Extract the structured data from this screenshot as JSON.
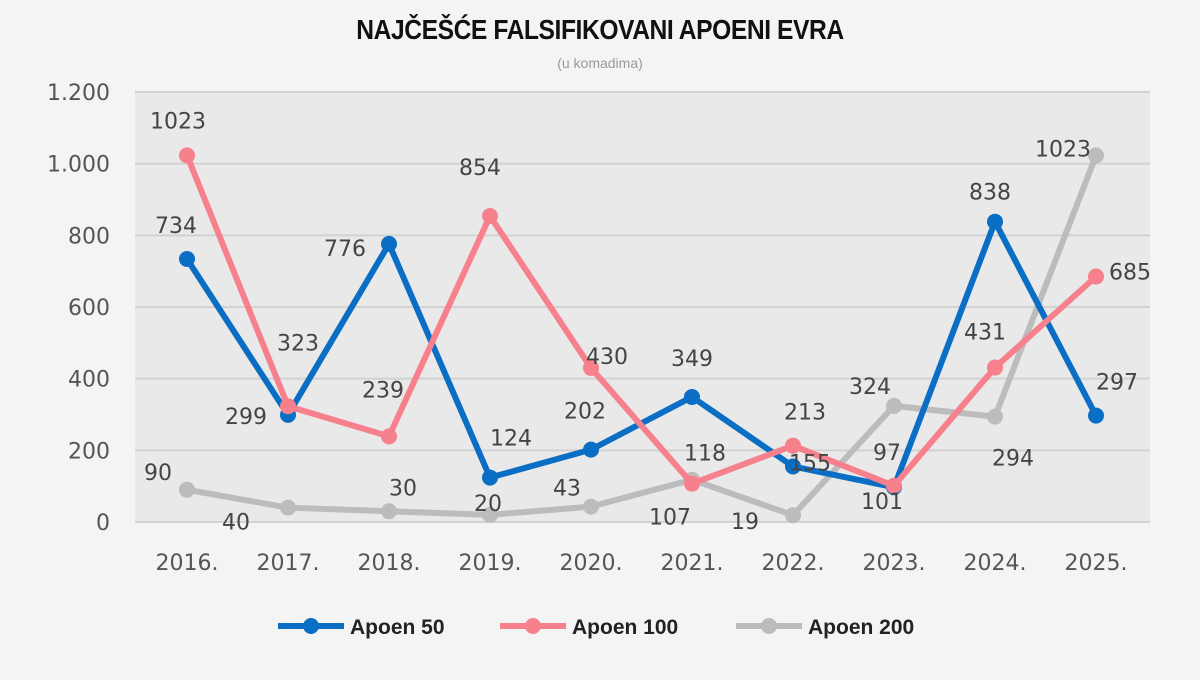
{
  "chart_data": {
    "type": "line",
    "title": "NAJČEŠĆE FALSIFIKOVANI APOENI EVRA",
    "subtitle": "(u komadima)",
    "xlabel": "",
    "ylabel": "",
    "categories": [
      "2016.",
      "2017.",
      "2018.",
      "2019.",
      "2020.",
      "2021.",
      "2022.",
      "2023.",
      "2024.",
      "2025."
    ],
    "ylim": [
      0,
      1200
    ],
    "yticks": [
      0,
      200,
      400,
      600,
      800,
      1000,
      1200
    ],
    "ytick_labels": [
      "0",
      "200",
      "400",
      "600",
      "800",
      "1.000",
      "1.200"
    ],
    "grid": true,
    "legend": "bottom",
    "series": [
      {
        "name": "Apoen 50",
        "color": "#0a6ec4",
        "values": [
          734,
          299,
          776,
          124,
          202,
          349,
          155,
          97,
          838,
          297
        ]
      },
      {
        "name": "Apoen 100",
        "color": "#f7808d",
        "values": [
          1023,
          323,
          239,
          854,
          430,
          107,
          213,
          101,
          431,
          685
        ]
      },
      {
        "name": "Apoen 200",
        "color": "#bcbcbc",
        "values": [
          90,
          40,
          30,
          20,
          43,
          118,
          19,
          324,
          294,
          1023
        ]
      }
    ]
  }
}
